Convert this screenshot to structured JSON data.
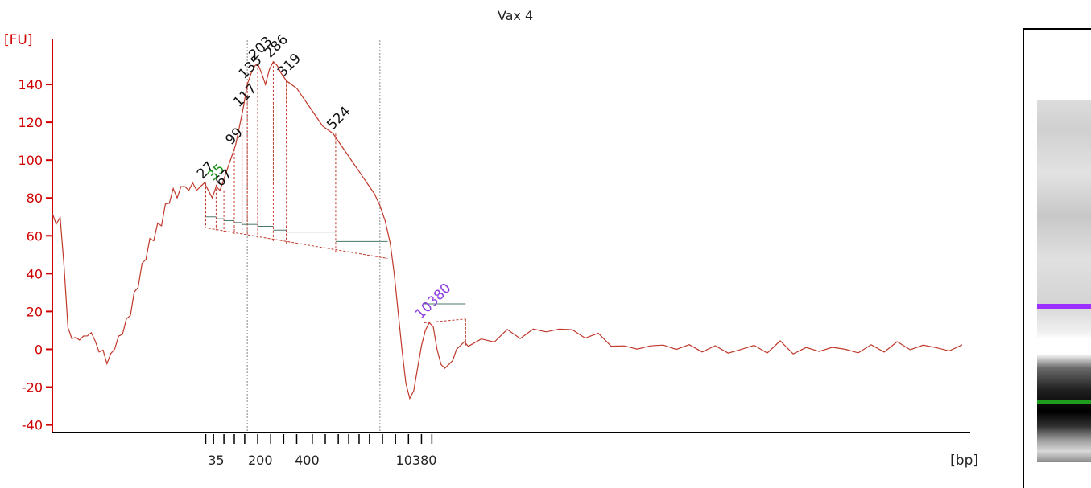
{
  "chart_data": {
    "type": "line",
    "title": "Vax 4",
    "ylabel": "[FU]",
    "xlabel": "[bp]",
    "ylim": [
      -44,
      160
    ],
    "y_ticks": [
      -40,
      -20,
      0,
      20,
      40,
      60,
      80,
      100,
      120,
      140
    ],
    "x_tick_labels": [
      "35",
      "200",
      "400",
      "10380"
    ],
    "line_color": "#c0392b",
    "axis_color": "#d00000",
    "ref_lines_time": [
      41.5,
      46.6
    ],
    "baseline_segments": [
      {
        "from": 40.0,
        "to": 41.9,
        "y": 65
      },
      {
        "from": 41.9,
        "to": 46.9,
        "y": 57
      },
      {
        "from": 48.3,
        "to": 49.9,
        "y": 14
      }
    ],
    "peaks": [
      {
        "label": "27",
        "color": "#111111",
        "time": 39.9,
        "y": 88,
        "fill_y": 70
      },
      {
        "label": "35",
        "color": "#1a8f1a",
        "time": 40.3,
        "y": 87,
        "fill_y": 69
      },
      {
        "label": "67",
        "color": "#111111",
        "time": 40.6,
        "y": 84,
        "fill_y": 68
      },
      {
        "label": "99",
        "color": "#111111",
        "time": 41.0,
        "y": 106,
        "fill_y": 67
      },
      {
        "label": "117",
        "color": "#111111",
        "time": 41.3,
        "y": 126,
        "fill_y": 66
      },
      {
        "label": "135",
        "color": "#111111",
        "time": 41.5,
        "y": 141,
        "fill_y": 66
      },
      {
        "label": "203",
        "color": "#111111",
        "time": 41.9,
        "y": 151,
        "fill_y": 65
      },
      {
        "label": "286",
        "color": "#111111",
        "time": 42.5,
        "y": 152,
        "fill_y": 63
      },
      {
        "label": "319",
        "color": "#111111",
        "time": 43.0,
        "y": 142,
        "fill_y": 62
      },
      {
        "label": "524",
        "color": "#111111",
        "time": 44.9,
        "y": 114,
        "fill_y": 57
      },
      {
        "label": "10380",
        "color": "#8e3fe0",
        "time": 48.3,
        "y": 14,
        "fill_y": 24
      }
    ],
    "trace": [
      [
        34.0,
        72
      ],
      [
        34.15,
        66
      ],
      [
        34.3,
        70
      ],
      [
        34.45,
        44
      ],
      [
        34.6,
        12
      ],
      [
        34.75,
        5
      ],
      [
        34.9,
        7
      ],
      [
        35.05,
        4
      ],
      [
        35.2,
        8
      ],
      [
        35.35,
        6
      ],
      [
        35.5,
        10
      ],
      [
        35.65,
        3
      ],
      [
        35.8,
        0
      ],
      [
        35.95,
        -2
      ],
      [
        36.1,
        -6
      ],
      [
        36.25,
        -4
      ],
      [
        36.4,
        2
      ],
      [
        36.55,
        5
      ],
      [
        36.7,
        10
      ],
      [
        36.85,
        14
      ],
      [
        37.0,
        20
      ],
      [
        37.15,
        28
      ],
      [
        37.3,
        35
      ],
      [
        37.45,
        43
      ],
      [
        37.6,
        50
      ],
      [
        37.75,
        56
      ],
      [
        37.9,
        60
      ],
      [
        38.05,
        64
      ],
      [
        38.2,
        68
      ],
      [
        38.35,
        74
      ],
      [
        38.5,
        80
      ],
      [
        38.65,
        85
      ],
      [
        38.8,
        80
      ],
      [
        38.95,
        86
      ],
      [
        39.1,
        86
      ],
      [
        39.25,
        84
      ],
      [
        39.4,
        88
      ],
      [
        39.55,
        84
      ],
      [
        39.7,
        86
      ],
      [
        39.85,
        88
      ],
      [
        40.0,
        84
      ],
      [
        40.15,
        80
      ],
      [
        40.3,
        86
      ],
      [
        40.45,
        84
      ],
      [
        40.6,
        90
      ],
      [
        40.75,
        96
      ],
      [
        40.9,
        102
      ],
      [
        41.05,
        108
      ],
      [
        41.2,
        118
      ],
      [
        41.35,
        128
      ],
      [
        41.5,
        140
      ],
      [
        41.65,
        146
      ],
      [
        41.8,
        150
      ],
      [
        41.9,
        151
      ],
      [
        42.05,
        146
      ],
      [
        42.2,
        140
      ],
      [
        42.35,
        148
      ],
      [
        42.5,
        152
      ],
      [
        42.65,
        150
      ],
      [
        42.8,
        146
      ],
      [
        43.0,
        142
      ],
      [
        43.2,
        140
      ],
      [
        43.4,
        138
      ],
      [
        43.6,
        134
      ],
      [
        43.8,
        130
      ],
      [
        44.0,
        126
      ],
      [
        44.2,
        122
      ],
      [
        44.4,
        118
      ],
      [
        44.6,
        116
      ],
      [
        44.8,
        114
      ],
      [
        45.0,
        110
      ],
      [
        45.2,
        106
      ],
      [
        45.4,
        102
      ],
      [
        45.6,
        98
      ],
      [
        45.8,
        94
      ],
      [
        46.0,
        90
      ],
      [
        46.2,
        86
      ],
      [
        46.4,
        82
      ],
      [
        46.6,
        76
      ],
      [
        46.8,
        68
      ],
      [
        47.0,
        56
      ],
      [
        47.15,
        40
      ],
      [
        47.3,
        20
      ],
      [
        47.45,
        0
      ],
      [
        47.6,
        -18
      ],
      [
        47.75,
        -26
      ],
      [
        47.9,
        -22
      ],
      [
        48.05,
        -10
      ],
      [
        48.2,
        2
      ],
      [
        48.35,
        10
      ],
      [
        48.5,
        14
      ],
      [
        48.65,
        12
      ],
      [
        48.8,
        0
      ],
      [
        48.95,
        -8
      ],
      [
        49.1,
        -10
      ],
      [
        49.25,
        -8
      ],
      [
        49.4,
        -6
      ],
      [
        49.55,
        0
      ],
      [
        49.7,
        2
      ],
      [
        49.85,
        4
      ],
      [
        50.0,
        2
      ],
      [
        50.5,
        4
      ],
      [
        51.0,
        6
      ],
      [
        51.5,
        8
      ],
      [
        52.0,
        8
      ],
      [
        52.5,
        9
      ],
      [
        53.0,
        10
      ],
      [
        53.5,
        11
      ],
      [
        54.0,
        9
      ],
      [
        54.5,
        8
      ],
      [
        55.0,
        6
      ],
      [
        55.5,
        4
      ],
      [
        56.0,
        0
      ],
      [
        56.5,
        1
      ],
      [
        57.0,
        2
      ],
      [
        57.5,
        1
      ],
      [
        58.0,
        2
      ],
      [
        58.5,
        0
      ],
      [
        59.0,
        1
      ],
      [
        59.5,
        0
      ],
      [
        60.0,
        -1
      ],
      [
        60.5,
        0
      ],
      [
        61.0,
        1
      ],
      [
        61.5,
        0
      ],
      [
        62.0,
        2
      ],
      [
        62.5,
        0
      ],
      [
        63.0,
        -1
      ],
      [
        63.5,
        0
      ],
      [
        64.0,
        1
      ],
      [
        64.5,
        -1
      ],
      [
        65.0,
        0
      ],
      [
        65.5,
        0
      ],
      [
        66.0,
        1
      ],
      [
        66.5,
        2
      ],
      [
        67.0,
        1
      ],
      [
        67.5,
        2
      ],
      [
        68.0,
        0
      ],
      [
        68.5,
        1
      ],
      [
        69.0,
        0
      ]
    ]
  }
}
